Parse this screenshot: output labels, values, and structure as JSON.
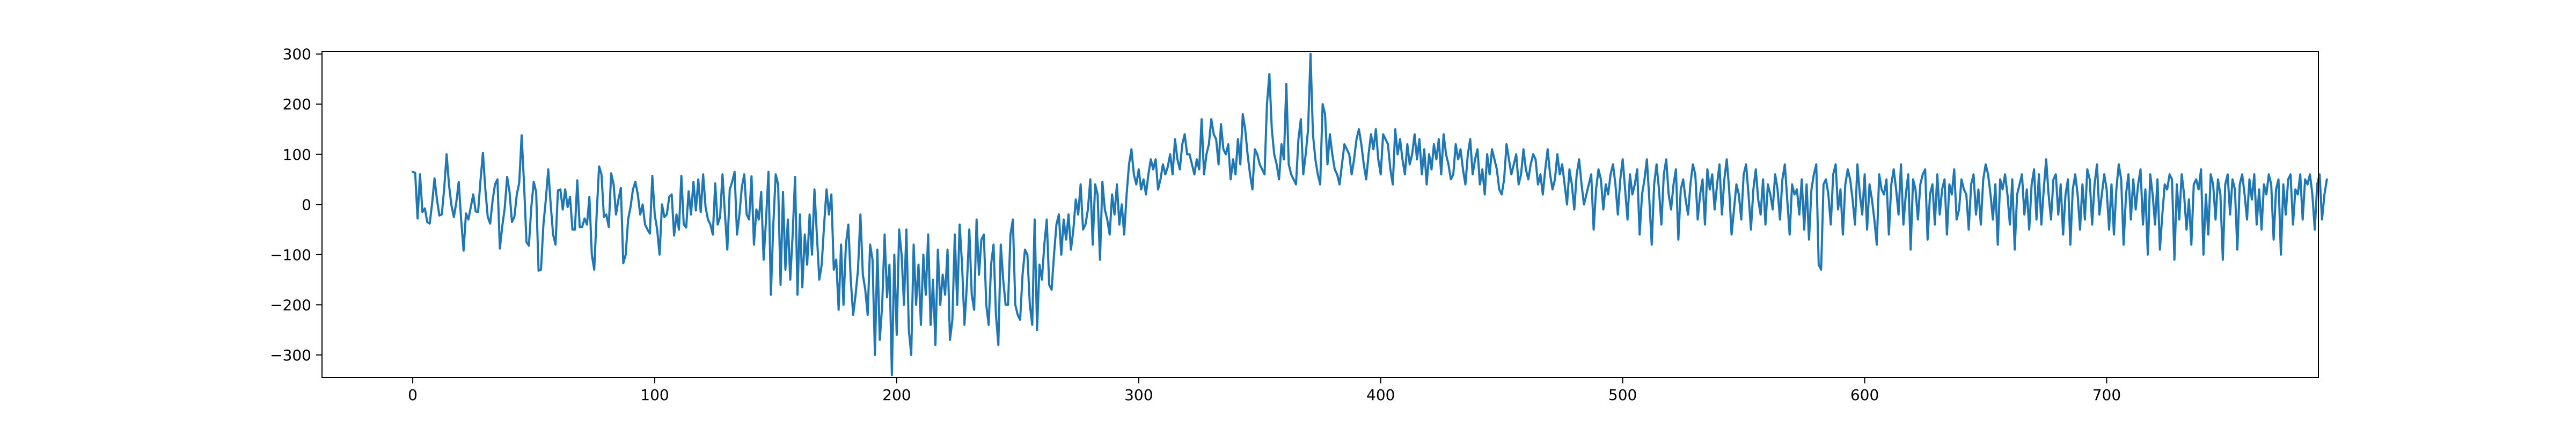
{
  "chart_data": {
    "type": "line",
    "title": "",
    "xlabel": "",
    "ylabel": "",
    "xlim": [
      -37.5,
      787.5
    ],
    "ylim": [
      -345,
      305
    ],
    "x_ticks": [
      0,
      100,
      200,
      300,
      400,
      500,
      600,
      700
    ],
    "y_ticks": [
      -300,
      -200,
      -100,
      0,
      100,
      200,
      300
    ],
    "x_tick_labels": [
      "0",
      "100",
      "200",
      "300",
      "400",
      "500",
      "600",
      "700"
    ],
    "y_tick_labels": [
      "−300",
      "−200",
      "−100",
      "0",
      "100",
      "200",
      "300"
    ],
    "grid": false,
    "legend": "none",
    "series": [
      {
        "color": "#1f77b4",
        "x_start": 0,
        "x_step": 1,
        "values": [
          65,
          63,
          -28,
          60,
          -15,
          -8,
          -35,
          -38,
          2,
          52,
          10,
          -22,
          -20,
          32,
          100,
          38,
          -2,
          -25,
          4,
          45,
          -30,
          -92,
          -18,
          -30,
          -5,
          20,
          -14,
          -15,
          48,
          103,
          30,
          -25,
          -38,
          8,
          40,
          50,
          -88,
          -43,
          -8,
          55,
          25,
          -35,
          -25,
          20,
          43,
          138,
          40,
          -75,
          -82,
          -5,
          45,
          25,
          -132,
          -130,
          -40,
          10,
          70,
          0,
          -60,
          -80,
          28,
          30,
          -10,
          30,
          -5,
          15,
          -50,
          -50,
          48,
          -45,
          -45,
          -28,
          -40,
          15,
          -100,
          -130,
          -20,
          76,
          60,
          -25,
          -20,
          -45,
          62,
          40,
          -20,
          10,
          33,
          -117,
          -100,
          -30,
          -5,
          30,
          45,
          20,
          -20,
          0,
          -40,
          -50,
          -58,
          57,
          -20,
          -50,
          -100,
          0,
          -25,
          -20,
          15,
          20,
          -62,
          -20,
          -50,
          57,
          -40,
          -46,
          26,
          -20,
          45,
          -12,
          50,
          -15,
          60,
          -5,
          -30,
          -40,
          -60,
          42,
          -40,
          -25,
          60,
          -18,
          -90,
          30,
          45,
          65,
          -60,
          -20,
          35,
          60,
          -20,
          -30,
          56,
          -80,
          -10,
          -30,
          25,
          -110,
          -30,
          65,
          -180,
          -40,
          60,
          40,
          -160,
          25,
          -130,
          -30,
          -150,
          -60,
          55,
          -180,
          -20,
          -165,
          -60,
          -120,
          -20,
          -100,
          30,
          -60,
          -150,
          -120,
          -40,
          30,
          -20,
          20,
          -130,
          -110,
          -210,
          -80,
          -200,
          -80,
          -40,
          -150,
          -220,
          -180,
          -130,
          -20,
          -140,
          -170,
          -220,
          -80,
          -110,
          -300,
          -90,
          -270,
          -200,
          -60,
          -185,
          -120,
          -340,
          -100,
          -260,
          -50,
          -100,
          -200,
          -50,
          -250,
          -300,
          -80,
          -200,
          -120,
          -240,
          -100,
          -180,
          -60,
          -240,
          -150,
          -280,
          -90,
          -200,
          -140,
          -180,
          -90,
          -270,
          -230,
          -60,
          -200,
          -40,
          -120,
          -240,
          -160,
          -50,
          -180,
          -210,
          -30,
          -140,
          -70,
          -60,
          -200,
          -240,
          -120,
          -80,
          -220,
          -280,
          -80,
          -150,
          -200,
          -200,
          -60,
          -30,
          -200,
          -220,
          -230,
          -140,
          -90,
          -100,
          -200,
          -240,
          -30,
          -250,
          -120,
          -150,
          -80,
          -30,
          -160,
          -170,
          -100,
          -40,
          -20,
          -100,
          -30,
          -70,
          -20,
          -90,
          -50,
          10,
          -20,
          40,
          -50,
          -40,
          -10,
          50,
          -80,
          40,
          20,
          -110,
          45,
          -10,
          -30,
          -60,
          20,
          -20,
          40,
          -40,
          0,
          -60,
          20,
          80,
          110,
          60,
          40,
          70,
          30,
          50,
          20,
          60,
          90,
          70,
          90,
          30,
          50,
          80,
          60,
          75,
          100,
          60,
          130,
          90,
          70,
          120,
          140,
          100,
          100,
          80,
          60,
          90,
          70,
          170,
          60,
          100,
          120,
          170,
          140,
          130,
          80,
          160,
          110,
          100,
          120,
          50,
          90,
          60,
          130,
          80,
          180,
          150,
          100,
          60,
          30,
          110,
          100,
          80,
          70,
          60,
          200,
          260,
          150,
          100,
          80,
          50,
          120,
          90,
          240,
          80,
          60,
          50,
          40,
          130,
          170,
          60,
          100,
          150,
          300,
          140,
          90,
          60,
          40,
          200,
          180,
          80,
          140,
          100,
          70,
          60,
          40,
          80,
          120,
          110,
          100,
          60,
          90,
          130,
          150,
          120,
          80,
          50,
          100,
          140,
          110,
          150,
          90,
          60,
          140,
          130,
          120,
          70,
          40,
          150,
          100,
          130,
          90,
          60,
          120,
          80,
          100,
          140,
          90,
          130,
          60,
          110,
          40,
          100,
          70,
          120,
          90,
          130,
          60,
          140,
          100,
          80,
          50,
          60,
          120,
          90,
          110,
          70,
          40,
          100,
          130,
          60,
          90,
          110,
          40,
          70,
          20,
          100,
          60,
          110,
          90,
          70,
          30,
          20,
          50,
          120,
          90,
          60,
          80,
          100,
          40,
          60,
          110,
          70,
          50,
          80,
          100,
          90,
          40,
          60,
          20,
          70,
          110,
          60,
          30,
          50,
          100,
          60,
          80,
          40,
          0,
          70,
          40,
          -10,
          60,
          90,
          40,
          0,
          20,
          40,
          60,
          -50,
          30,
          70,
          50,
          -10,
          40,
          20,
          60,
          80,
          40,
          -20,
          50,
          90,
          30,
          -30,
          60,
          20,
          40,
          70,
          -60,
          20,
          50,
          90,
          10,
          -80,
          40,
          80,
          30,
          -40,
          60,
          90,
          20,
          -10,
          40,
          70,
          -70,
          30,
          50,
          10,
          -20,
          40,
          80,
          60,
          -30,
          20,
          50,
          -40,
          70,
          30,
          60,
          -10,
          40,
          80,
          -20,
          50,
          90,
          30,
          -60,
          -10,
          40,
          20,
          -30,
          60,
          80,
          20,
          -50,
          30,
          70,
          10,
          -20,
          50,
          -40,
          40,
          20,
          -10,
          60,
          30,
          -30,
          50,
          80,
          10,
          -60,
          40,
          20,
          30,
          -20,
          50,
          -50,
          40,
          -70,
          30,
          60,
          80,
          -120,
          -130,
          40,
          50,
          20,
          -40,
          60,
          80,
          -10,
          30,
          -60,
          40,
          70,
          50,
          10,
          -40,
          80,
          20,
          -20,
          60,
          -50,
          40,
          10,
          -30,
          -80,
          60,
          30,
          20,
          50,
          -60,
          40,
          70,
          30,
          -20,
          80,
          -40,
          20,
          60,
          -90,
          50,
          30,
          -30,
          40,
          60,
          70,
          -70,
          20,
          40,
          -40,
          60,
          -20,
          30,
          50,
          -60,
          40,
          20,
          70,
          -30,
          -10,
          50,
          30,
          20,
          -50,
          40,
          60,
          -20,
          30,
          -40,
          50,
          80,
          60,
          20,
          -30,
          40,
          -80,
          50,
          30,
          60,
          20,
          -40,
          50,
          -90,
          20,
          40,
          60,
          -20,
          30,
          -50,
          40,
          70,
          -30,
          60,
          -40,
          30,
          90,
          20,
          -30,
          50,
          60,
          -20,
          40,
          -60,
          20,
          50,
          -80,
          30,
          60,
          20,
          -50,
          40,
          -30,
          70,
          50,
          -40,
          40,
          80,
          -20,
          20,
          60,
          30,
          -50,
          40,
          -60,
          30,
          80,
          50,
          -80,
          20,
          60,
          -30,
          50,
          -10,
          40,
          70,
          -40,
          30,
          -100,
          60,
          20,
          -40,
          50,
          -90,
          -20,
          40,
          30,
          60,
          50,
          -110,
          40,
          -30,
          60,
          20,
          -50,
          10,
          -80,
          40,
          50,
          30,
          70,
          -100,
          20,
          -60,
          60,
          40,
          -30,
          50,
          20,
          -110,
          40,
          60,
          -20,
          50,
          30,
          -90,
          40,
          60,
          20,
          -30,
          50,
          10,
          60,
          -40,
          30,
          -50,
          40,
          20,
          60,
          40,
          -70,
          30,
          50,
          -100,
          40,
          -20,
          50,
          60,
          -40,
          30,
          20,
          60,
          -30,
          50,
          40,
          60,
          20,
          -50,
          40,
          60,
          -30,
          20,
          50
        ]
      }
    ]
  }
}
